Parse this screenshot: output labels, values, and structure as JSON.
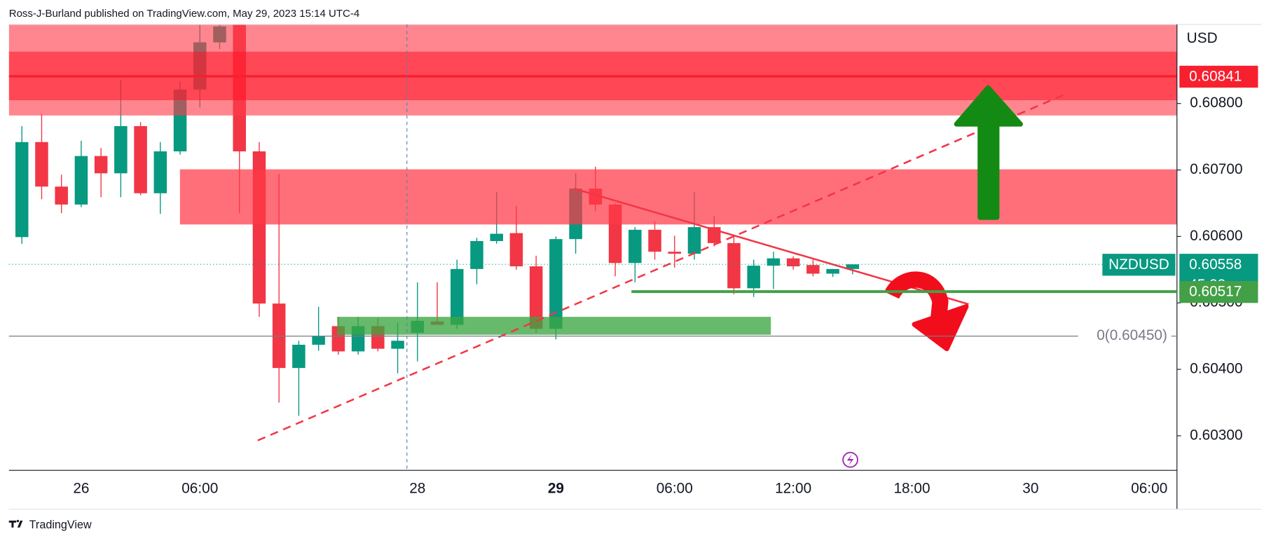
{
  "header": "Ross-J-Burland published on TradingView.com, May 29, 2023 15:14 UTC-4",
  "footer": "TradingView",
  "chart_data": {
    "type": "candlestick",
    "symbol": "NZDUSD",
    "currency": "USD",
    "countdown": "45:33",
    "categories": [
      null,
      null,
      null,
      "26",
      null,
      null,
      null,
      null,
      null,
      "06:00",
      null,
      null,
      null,
      null,
      null,
      null,
      null,
      null,
      null,
      null,
      "28",
      null,
      null,
      null,
      null,
      null,
      null,
      "29",
      null,
      null,
      null,
      null,
      null,
      "06:00",
      null,
      null,
      null,
      null,
      null,
      "12:00",
      null,
      null,
      null,
      null,
      null,
      "18:00",
      null,
      null,
      null,
      null,
      null,
      "30",
      null,
      null,
      null,
      null,
      null,
      "06:00",
      null
    ],
    "bold_categories": [
      "29"
    ],
    "open": [
      0.60599,
      0.60742,
      0.60675,
      0.60648,
      0.60721,
      0.60695,
      0.60766,
      0.60665,
      0.60728,
      0.60821,
      0.60892,
      0.60919,
      0.60728,
      0.60499,
      0.60402,
      0.60437,
      0.60465,
      0.60427,
      0.60465,
      0.60431,
      0.60455,
      0.60472,
      0.60467,
      0.60551,
      0.60593,
      0.60605,
      0.60555,
      0.60461,
      0.60596,
      0.60672,
      0.60648,
      0.6056,
      0.6061,
      0.60577,
      0.60574,
      0.60614,
      0.6059,
      0.60522,
      0.60556,
      0.60567,
      0.60557,
      0.60544,
      0.60551,
      null,
      null,
      null,
      null,
      null,
      null,
      null,
      null,
      null,
      null,
      null,
      null,
      null,
      null,
      null,
      null
    ],
    "high": [
      0.60766,
      0.60784,
      0.60693,
      0.60744,
      0.60733,
      0.60836,
      0.60772,
      0.60742,
      0.60833,
      0.60919,
      0.60919,
      0.60919,
      0.60742,
      0.60694,
      0.60443,
      0.60494,
      0.60479,
      0.60479,
      0.60477,
      0.6047,
      0.60531,
      0.60531,
      0.60565,
      0.60598,
      0.60667,
      0.60646,
      0.60571,
      0.606,
      0.60695,
      0.60705,
      0.6065,
      0.60614,
      0.60623,
      0.60601,
      0.60667,
      0.60631,
      0.60601,
      0.60565,
      0.60577,
      0.6057,
      0.60565,
      0.60551,
      0.60553,
      null,
      null,
      null,
      null,
      null,
      null,
      null,
      null,
      null,
      null,
      null,
      null,
      null,
      null,
      null,
      null
    ],
    "low": [
      0.60589,
      0.60656,
      0.60635,
      0.60644,
      0.60659,
      0.60659,
      0.60662,
      0.60634,
      0.60723,
      0.60794,
      0.60882,
      0.60635,
      0.60479,
      0.6035,
      0.6033,
      0.60428,
      0.60422,
      0.60422,
      0.60427,
      0.60394,
      0.60412,
      0.60467,
      0.60461,
      0.60528,
      0.60589,
      0.6055,
      0.60455,
      0.60445,
      0.60574,
      0.60638,
      0.6054,
      0.60531,
      0.60565,
      0.60553,
      0.60565,
      0.60585,
      0.60513,
      0.60509,
      0.60521,
      0.6055,
      0.6054,
      0.60539,
      0.60543,
      null,
      null,
      null,
      null,
      null,
      null,
      null,
      null,
      null,
      null,
      null,
      null,
      null,
      null,
      null,
      null
    ],
    "close": [
      0.60742,
      0.60675,
      0.60648,
      0.60721,
      0.60695,
      0.60766,
      0.60665,
      0.60728,
      0.60821,
      0.60892,
      0.60916,
      0.60728,
      0.60499,
      0.60402,
      0.60437,
      0.6045,
      0.60427,
      0.60465,
      0.60431,
      0.60443,
      0.60473,
      0.60467,
      0.60551,
      0.60593,
      0.60604,
      0.60555,
      0.60461,
      0.60596,
      0.60672,
      0.60648,
      0.6056,
      0.6061,
      0.60577,
      0.60574,
      0.60614,
      0.6059,
      0.60522,
      0.60556,
      0.60567,
      0.60555,
      0.60544,
      0.60551,
      0.60558,
      null,
      null,
      null,
      null,
      null,
      null,
      null,
      null,
      null,
      null,
      null,
      null,
      null,
      null,
      null,
      null
    ],
    "up_color": "#089981",
    "down_color": "#f23645",
    "ylim": [
      0.60248,
      0.60919
    ],
    "yticks": [
      {
        "value": 0.603,
        "label": "0.60300"
      },
      {
        "value": 0.604,
        "label": "0.60400"
      },
      {
        "value": 0.605,
        "label": "0.60500"
      },
      {
        "value": 0.606,
        "label": "0.60600"
      },
      {
        "value": 0.607,
        "label": "0.60700"
      },
      {
        "value": 0.608,
        "label": "0.60800"
      }
    ],
    "zones": [
      {
        "top": 0.60919,
        "bottom": 0.60782,
        "color": "rgba(255,60,75,0.62)"
      },
      {
        "top": 0.60878,
        "bottom": 0.60805,
        "color": "rgba(255,20,40,0.55)"
      },
      {
        "top": 0.60701,
        "bottom": 0.60618,
        "color": "rgba(255,55,70,0.72)"
      },
      {
        "top": 0.60479,
        "bottom": 0.60452,
        "color": "rgba(60,165,65,0.78)"
      }
    ],
    "levels": [
      {
        "value": 0.60841,
        "label": "0.60841",
        "color": "#f7202f"
      },
      {
        "value": 0.60517,
        "label": "0.60517",
        "color": "#43a047"
      },
      {
        "value": 0.6045,
        "label": "0(0.60450)",
        "color": "#787b86"
      },
      {
        "value": 0.60558,
        "label": "0.60558",
        "color": "#089981"
      }
    ],
    "trendlines": [
      {
        "values": [
          0.60293,
          0.60815
        ],
        "color": "#f23645",
        "style": "dashed"
      },
      {
        "values": [
          0.60672,
          0.60498
        ],
        "color": "#f23645",
        "style": "solid"
      }
    ]
  }
}
